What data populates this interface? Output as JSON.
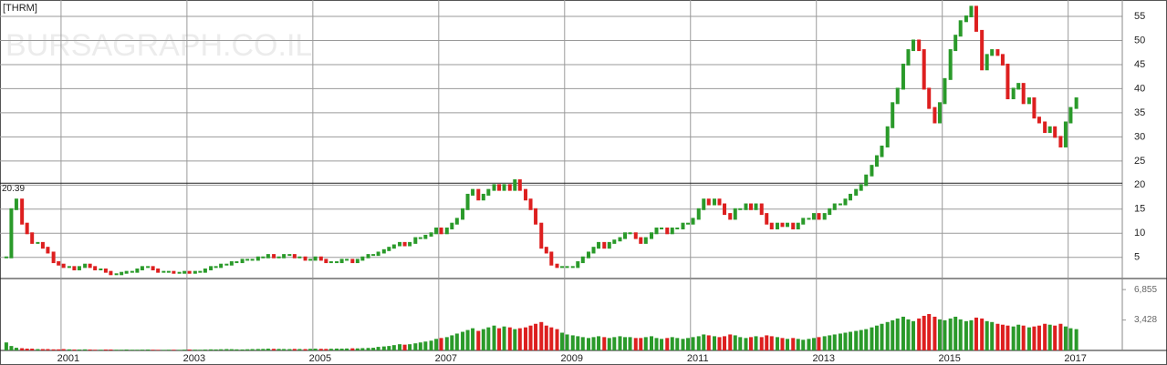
{
  "chart_data": {
    "type": "candlestick",
    "title": "[THRM]",
    "watermark": "BURSAGRAPH.CO.IL",
    "x": [
      2000.13,
      2000.21,
      2000.29,
      2000.38,
      2000.46,
      2000.54,
      2000.63,
      2000.71,
      2000.79,
      2000.88,
      2000.96,
      2001.04,
      2001.13,
      2001.21,
      2001.29,
      2001.38,
      2001.46,
      2001.54,
      2001.63,
      2001.71,
      2001.79,
      2001.88,
      2001.96,
      2002.04,
      2002.13,
      2002.21,
      2002.29,
      2002.38,
      2002.46,
      2002.54,
      2002.63,
      2002.71,
      2002.79,
      2002.88,
      2002.96,
      2003.04,
      2003.13,
      2003.21,
      2003.29,
      2003.38,
      2003.46,
      2003.54,
      2003.63,
      2003.71,
      2003.79,
      2003.88,
      2003.96,
      2004.04,
      2004.13,
      2004.21,
      2004.29,
      2004.38,
      2004.46,
      2004.54,
      2004.63,
      2004.71,
      2004.79,
      2004.88,
      2004.96,
      2005.04,
      2005.13,
      2005.21,
      2005.29,
      2005.38,
      2005.46,
      2005.54,
      2005.63,
      2005.71,
      2005.79,
      2005.88,
      2005.96,
      2006.04,
      2006.13,
      2006.21,
      2006.29,
      2006.38,
      2006.46,
      2006.54,
      2006.63,
      2006.71,
      2006.79,
      2006.88,
      2006.96,
      2007.04,
      2007.13,
      2007.21,
      2007.29,
      2007.38,
      2007.46,
      2007.54,
      2007.63,
      2007.71,
      2007.79,
      2007.88,
      2007.96,
      2008.04,
      2008.13,
      2008.21,
      2008.29,
      2008.38,
      2008.46,
      2008.54,
      2008.63,
      2008.71,
      2008.79,
      2008.88,
      2008.96,
      2009.04,
      2009.13,
      2009.21,
      2009.29,
      2009.38,
      2009.46,
      2009.54,
      2009.63,
      2009.71,
      2009.79,
      2009.88,
      2009.96,
      2010.04,
      2010.13,
      2010.21,
      2010.29,
      2010.38,
      2010.46,
      2010.54,
      2010.63,
      2010.71,
      2010.79,
      2010.88,
      2010.96,
      2011.04,
      2011.13,
      2011.21,
      2011.29,
      2011.38,
      2011.46,
      2011.54,
      2011.63,
      2011.71,
      2011.79,
      2011.88,
      2011.96,
      2012.04,
      2012.13,
      2012.21,
      2012.29,
      2012.38,
      2012.46,
      2012.54,
      2012.63,
      2012.71,
      2012.79,
      2012.88,
      2012.96,
      2013.04,
      2013.13,
      2013.21,
      2013.29,
      2013.38,
      2013.46,
      2013.54,
      2013.63,
      2013.71,
      2013.79,
      2013.88,
      2013.96,
      2014.04,
      2014.13,
      2014.21,
      2014.29,
      2014.38,
      2014.46,
      2014.54,
      2014.63,
      2014.71,
      2014.79,
      2014.88,
      2014.96,
      2015.04,
      2015.13,
      2015.21,
      2015.29,
      2015.38,
      2015.46,
      2015.54,
      2015.63,
      2015.71,
      2015.79,
      2015.88,
      2015.96,
      2016.04,
      2016.13,
      2016.21,
      2016.29,
      2016.38,
      2016.46,
      2016.54,
      2016.63,
      2016.71,
      2016.79,
      2016.88,
      2016.96,
      2017.04,
      2017.13
    ],
    "close": [
      5,
      15,
      17,
      12,
      10,
      8,
      8,
      7,
      6,
      4,
      3.5,
      3,
      3,
      2.5,
      3,
      3.5,
      3,
      2.5,
      2.5,
      2,
      1.5,
      1.5,
      1.8,
      2,
      2,
      2.5,
      3,
      3,
      2.5,
      2,
      2,
      2,
      1.8,
      1.8,
      2,
      1.8,
      2,
      2,
      2.5,
      3,
      3,
      3.5,
      3.5,
      4,
      4,
      4.5,
      4.5,
      4.5,
      5,
      5,
      5.5,
      5,
      5,
      5.5,
      5.5,
      5,
      5,
      4.5,
      4.5,
      5,
      4.5,
      4,
      4,
      4,
      4.5,
      4.5,
      4,
      4.5,
      5,
      5.5,
      5.5,
      6,
      6.5,
      7,
      7.5,
      8,
      7.5,
      8,
      9,
      9,
      9.5,
      10,
      11,
      10,
      11,
      12,
      13,
      15,
      18,
      19,
      17,
      18,
      19,
      20,
      19,
      20,
      19,
      21,
      19,
      17,
      15,
      12,
      7,
      6,
      3.5,
      3,
      3,
      3,
      3,
      4,
      5,
      6,
      7,
      8,
      7,
      8,
      8.5,
      9,
      10,
      10,
      9,
      8,
      9,
      10,
      11,
      11,
      10,
      11,
      11,
      12,
      12,
      13,
      15,
      17,
      16,
      17,
      16,
      14,
      13,
      15,
      15,
      16,
      15,
      16,
      14,
      12,
      11,
      12,
      11.5,
      12,
      11,
      12,
      13,
      13,
      14,
      13,
      14,
      15,
      16,
      16,
      17,
      18,
      19,
      20,
      22,
      24,
      26,
      28,
      32,
      37,
      40,
      45,
      48,
      50,
      48,
      40,
      36,
      33,
      37,
      42,
      48,
      51,
      54,
      55,
      57,
      52,
      44,
      47,
      48,
      47,
      45,
      38,
      40,
      41,
      37,
      38,
      34,
      33,
      31,
      32,
      30,
      28,
      33,
      36,
      38
    ],
    "volume": [
      900,
      500,
      300,
      250,
      200,
      200,
      150,
      150,
      150,
      120,
      120,
      150,
      120,
      100,
      100,
      120,
      100,
      80,
      80,
      100,
      100,
      80,
      80,
      100,
      80,
      80,
      90,
      100,
      80,
      70,
      70,
      80,
      80,
      70,
      90,
      100,
      90,
      80,
      100,
      120,
      110,
      130,
      150,
      140,
      120,
      110,
      130,
      150,
      160,
      170,
      200,
      180,
      170,
      160,
      150,
      170,
      160,
      150,
      180,
      200,
      180,
      170,
      190,
      210,
      200,
      220,
      240,
      230,
      260,
      280,
      300,
      400,
      450,
      500,
      600,
      700,
      650,
      700,
      800,
      900,
      1000,
      1100,
      1300,
      1400,
      1500,
      1700,
      1900,
      2100,
      2300,
      2500,
      2200,
      2400,
      2600,
      2800,
      2500,
      2700,
      2600,
      2400,
      2500,
      2600,
      2800,
      3000,
      3200,
      2800,
      2600,
      2400,
      2000,
      1800,
      1700,
      1600,
      1500,
      1400,
      1500,
      1600,
      1500,
      1400,
      1500,
      1600,
      1500,
      1500,
      1400,
      1400,
      1500,
      1600,
      1400,
      1300,
      1400,
      1500,
      1400,
      1300,
      1400,
      1500,
      1600,
      1800,
      1700,
      1600,
      1500,
      1600,
      1800,
      1700,
      1500,
      1400,
      1500,
      1600,
      1500,
      1700,
      1600,
      1500,
      1400,
      1300,
      1400,
      1300,
      1200,
      1300,
      1400,
      1500,
      1600,
      1700,
      1800,
      1900,
      2000,
      2100,
      2200,
      2300,
      2400,
      2600,
      2800,
      3000,
      3200,
      3400,
      3600,
      3800,
      3500,
      3300,
      3600,
      3900,
      4100,
      3800,
      3500,
      3400,
      3600,
      3800,
      3500,
      3300,
      3400,
      3700,
      3600,
      3300,
      3200,
      3000,
      2900,
      2800,
      2700,
      2900,
      2800,
      2600,
      2700,
      2800,
      3000,
      2900,
      2800,
      3000,
      2700,
      2500,
      2400
    ],
    "up_color": "#2a9a2a",
    "down_color": "#dd1f1f",
    "xlim": [
      2000.03,
      2017.86
    ],
    "xticks": [
      2001,
      2003,
      2005,
      2007,
      2009,
      2011,
      2013,
      2015,
      2017
    ],
    "ylim": [
      0.8,
      58.4
    ],
    "yticks": [
      5,
      10,
      15,
      20,
      25,
      30,
      35,
      40,
      45,
      50,
      55
    ],
    "reference_line": 20.39,
    "volume_ylim": [
      0,
      8000
    ],
    "volume_yticks": [
      {
        "value": 3428,
        "label": "3,428"
      },
      {
        "value": 6855,
        "label": "6,855"
      }
    ],
    "grid": true
  }
}
